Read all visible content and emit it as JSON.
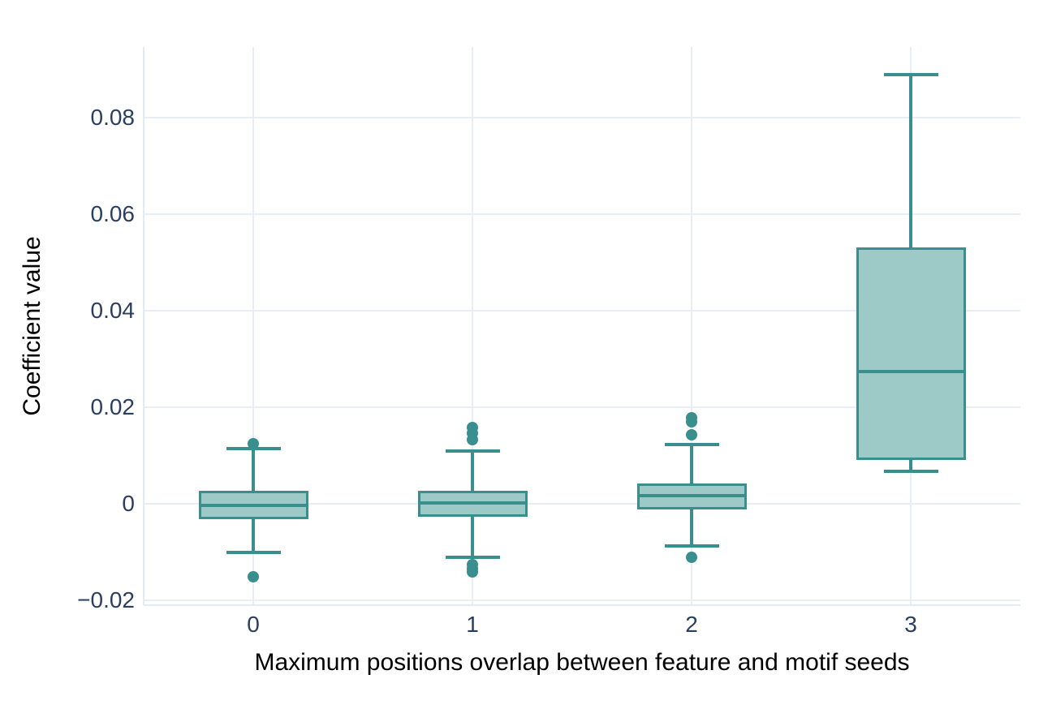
{
  "figure": {
    "background_color": "#ffffff",
    "text_color": "#2a3f5f",
    "grid_color": "#e9eef6",
    "axis_line_color": "#e2eaf4",
    "box_line_color": "#398f8d",
    "box_fill_color": "#9dc9c7",
    "outlier_color": "#398f8d"
  },
  "chart_data": {
    "type": "box",
    "title": "",
    "xlabel": "Maximum positions overlap between feature and motif seeds",
    "ylabel": "Coefficient value",
    "categories": [
      "0",
      "1",
      "2",
      "3"
    ],
    "ylim": [
      -0.021,
      0.0946
    ],
    "grid": true,
    "legend": false,
    "yticks": [
      {
        "value": -0.02,
        "label": "−0.02"
      },
      {
        "value": 0,
        "label": "0"
      },
      {
        "value": 0.02,
        "label": "0.02"
      },
      {
        "value": 0.04,
        "label": "0.04"
      },
      {
        "value": 0.06,
        "label": "0.06"
      },
      {
        "value": 0.08,
        "label": "0.08"
      }
    ],
    "series": [
      {
        "category": "0",
        "whisker_low": -0.0101,
        "q1": -0.0032,
        "median": -0.0004,
        "q3": 0.0027,
        "whisker_high": 0.0114,
        "outliers": [
          0.0124,
          -0.0151
        ]
      },
      {
        "category": "1",
        "whisker_low": -0.0111,
        "q1": -0.0027,
        "median": 0.0002,
        "q3": 0.0027,
        "whisker_high": 0.0109,
        "outliers": [
          0.0158,
          0.0146,
          0.0133,
          -0.0126,
          -0.0135,
          -0.0141
        ]
      },
      {
        "category": "2",
        "whisker_low": -0.0087,
        "q1": -0.0012,
        "median": 0.0017,
        "q3": 0.0042,
        "whisker_high": 0.0123,
        "outliers": [
          0.0178,
          0.0169,
          0.0143,
          -0.0111
        ]
      },
      {
        "category": "3",
        "whisker_low": 0.0067,
        "q1": 0.0091,
        "median": 0.0274,
        "q3": 0.0531,
        "whisker_high": 0.0889,
        "outliers": []
      }
    ]
  }
}
